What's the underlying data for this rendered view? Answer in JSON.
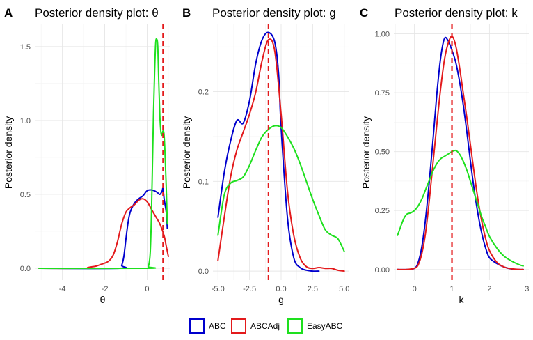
{
  "chart_data": [
    {
      "type": "line",
      "panel": "A",
      "title": "Posterior density plot: θ",
      "xlabel": "θ",
      "ylabel": "Posterior density",
      "xlim": [
        -5.3,
        1.1
      ],
      "ylim": [
        -0.08,
        1.65
      ],
      "xticks": [
        -4,
        -2,
        0
      ],
      "xtick_labels": [
        "-4",
        "-2",
        "0"
      ],
      "yticks": [
        0,
        0.5,
        1,
        1.5
      ],
      "ytick_labels": [
        "0.0",
        "0.5",
        "1.0",
        "1.5"
      ],
      "reference_line": 0.75,
      "grid": true,
      "series": [
        {
          "name": "ABC",
          "x": [
            -5.1,
            -1.3,
            -1.2,
            -1.1,
            -1.0,
            -0.9,
            -0.8,
            -0.6,
            -0.4,
            -0.2,
            0.0,
            0.2,
            0.4,
            0.5,
            0.6,
            0.7,
            0.75,
            0.8,
            0.9,
            0.95
          ],
          "y": [
            0,
            0,
            0.02,
            0.08,
            0.2,
            0.31,
            0.38,
            0.44,
            0.47,
            0.49,
            0.525,
            0.53,
            0.52,
            0.51,
            0.5,
            0.52,
            0.54,
            0.47,
            0.38,
            0.27
          ]
        },
        {
          "name": "ABCAdj",
          "x": [
            -5.1,
            -3.0,
            -2.8,
            -2.6,
            -2.4,
            -2.2,
            -2.0,
            -1.8,
            -1.6,
            -1.4,
            -1.2,
            -1.0,
            -0.8,
            -0.6,
            -0.4,
            -0.2,
            0.0,
            0.2,
            0.4,
            0.6,
            0.8,
            0.9,
            1.0
          ],
          "y": [
            0,
            0,
            0.005,
            0.01,
            0.015,
            0.025,
            0.035,
            0.05,
            0.09,
            0.18,
            0.3,
            0.38,
            0.41,
            0.43,
            0.46,
            0.47,
            0.45,
            0.4,
            0.35,
            0.3,
            0.22,
            0.15,
            0.08
          ]
        },
        {
          "name": "EasyABC",
          "x": [
            -5.1,
            0.0,
            0.05,
            0.1,
            0.15,
            0.2,
            0.25,
            0.3,
            0.35,
            0.4,
            0.45,
            0.5,
            0.55,
            0.6,
            0.65,
            0.7,
            0.75,
            0.8,
            0.85,
            0.9,
            0.95
          ],
          "y": [
            0,
            0,
            0.01,
            0.04,
            0.12,
            0.35,
            0.7,
            1.05,
            1.32,
            1.52,
            1.55,
            1.5,
            1.25,
            1.03,
            0.92,
            0.9,
            0.93,
            0.9,
            0.75,
            0.55,
            0.3
          ]
        }
      ]
    },
    {
      "type": "line",
      "panel": "B",
      "title": "Posterior density plot: g",
      "xlabel": "g",
      "ylabel": "Posterior density",
      "xlim": [
        -5.4,
        5.4
      ],
      "ylim": [
        -0.01,
        0.275
      ],
      "xticks": [
        -5,
        -2.5,
        0,
        2.5,
        5
      ],
      "xtick_labels": [
        "-5.0",
        "-2.5",
        "0.0",
        "2.5",
        "5.0"
      ],
      "yticks": [
        0,
        0.1,
        0.2
      ],
      "ytick_labels": [
        "0.0",
        "0.1",
        "0.2"
      ],
      "reference_line": -1.0,
      "grid": true,
      "series": [
        {
          "name": "ABC",
          "x": [
            -5.0,
            -4.5,
            -4.0,
            -3.5,
            -3.0,
            -2.5,
            -2.0,
            -1.5,
            -1.0,
            -0.5,
            -0.2,
            0.0,
            0.5,
            1.0,
            1.5,
            2.0,
            2.5,
            3.0
          ],
          "y": [
            0.06,
            0.11,
            0.145,
            0.168,
            0.165,
            0.19,
            0.232,
            0.258,
            0.266,
            0.255,
            0.22,
            0.16,
            0.06,
            0.015,
            0.004,
            0.001,
            0,
            0
          ]
        },
        {
          "name": "ABCAdj",
          "x": [
            -5.0,
            -4.5,
            -4.0,
            -3.5,
            -3.0,
            -2.5,
            -2.0,
            -1.5,
            -1.0,
            -0.5,
            0.0,
            0.5,
            1.0,
            1.5,
            2.0,
            2.5,
            3.0,
            3.5,
            4.0,
            4.5,
            5.0
          ],
          "y": [
            0.012,
            0.06,
            0.105,
            0.135,
            0.155,
            0.175,
            0.2,
            0.235,
            0.258,
            0.245,
            0.175,
            0.09,
            0.04,
            0.015,
            0.005,
            0.003,
            0.004,
            0.003,
            0.003,
            0.001,
            0
          ]
        },
        {
          "name": "EasyABC",
          "x": [
            -5.0,
            -4.5,
            -4.0,
            -3.5,
            -3.0,
            -2.5,
            -2.0,
            -1.5,
            -1.0,
            -0.5,
            0.0,
            0.5,
            1.0,
            1.5,
            2.0,
            2.5,
            3.0,
            3.5,
            4.0,
            4.5,
            5.0
          ],
          "y": [
            0.04,
            0.085,
            0.098,
            0.101,
            0.105,
            0.118,
            0.135,
            0.15,
            0.158,
            0.162,
            0.16,
            0.15,
            0.137,
            0.12,
            0.1,
            0.08,
            0.062,
            0.046,
            0.04,
            0.036,
            0.022
          ]
        }
      ]
    },
    {
      "type": "line",
      "panel": "C",
      "title": "Posterior density plot: k",
      "xlabel": "k",
      "ylabel": "Posterior density",
      "xlim": [
        -0.55,
        3.05
      ],
      "ylim": [
        -0.045,
        1.04
      ],
      "xticks": [
        0,
        1,
        2,
        3
      ],
      "xtick_labels": [
        "0",
        "1",
        "2",
        "3"
      ],
      "yticks": [
        0,
        0.25,
        0.5,
        0.75,
        1
      ],
      "ytick_labels": [
        "0.00",
        "0.25",
        "0.50",
        "0.75",
        "1.00"
      ],
      "reference_line": 1.0,
      "grid": true,
      "series": [
        {
          "name": "ABC",
          "x": [
            -0.45,
            -0.2,
            0.0,
            0.1,
            0.2,
            0.3,
            0.4,
            0.5,
            0.6,
            0.7,
            0.8,
            0.9,
            1.0,
            1.1,
            1.2,
            1.3,
            1.4,
            1.5,
            1.6,
            1.7,
            1.8,
            1.9,
            2.0,
            2.2,
            2.4,
            2.6,
            2.8,
            2.9
          ],
          "y": [
            0,
            0,
            0.005,
            0.03,
            0.1,
            0.22,
            0.38,
            0.56,
            0.75,
            0.9,
            0.98,
            0.97,
            0.93,
            0.88,
            0.8,
            0.7,
            0.58,
            0.45,
            0.33,
            0.23,
            0.15,
            0.09,
            0.05,
            0.025,
            0.01,
            0.002,
            0,
            0
          ]
        },
        {
          "name": "ABCAdj",
          "x": [
            -0.45,
            -0.2,
            0.0,
            0.1,
            0.2,
            0.3,
            0.4,
            0.5,
            0.6,
            0.7,
            0.8,
            0.9,
            1.0,
            1.1,
            1.2,
            1.3,
            1.4,
            1.5,
            1.6,
            1.7,
            1.8,
            1.9,
            2.0,
            2.2,
            2.4,
            2.6,
            2.8,
            2.9
          ],
          "y": [
            0,
            0,
            0.005,
            0.02,
            0.07,
            0.16,
            0.3,
            0.46,
            0.62,
            0.77,
            0.89,
            0.96,
            0.99,
            0.95,
            0.86,
            0.75,
            0.64,
            0.52,
            0.4,
            0.29,
            0.2,
            0.13,
            0.08,
            0.03,
            0.01,
            0.003,
            0,
            0
          ]
        },
        {
          "name": "EasyABC",
          "x": [
            -0.45,
            -0.3,
            -0.2,
            -0.1,
            0.0,
            0.1,
            0.2,
            0.3,
            0.4,
            0.5,
            0.6,
            0.7,
            0.8,
            0.9,
            1.0,
            1.1,
            1.2,
            1.3,
            1.4,
            1.5,
            1.6,
            1.7,
            1.8,
            1.9,
            2.0,
            2.2,
            2.4,
            2.6,
            2.8,
            2.9
          ],
          "y": [
            0.145,
            0.21,
            0.235,
            0.24,
            0.25,
            0.27,
            0.3,
            0.34,
            0.38,
            0.42,
            0.45,
            0.47,
            0.48,
            0.49,
            0.5,
            0.505,
            0.49,
            0.46,
            0.42,
            0.37,
            0.32,
            0.27,
            0.22,
            0.18,
            0.14,
            0.09,
            0.055,
            0.035,
            0.02,
            0.015
          ]
        }
      ]
    }
  ],
  "legend": {
    "position": "bottom",
    "items": [
      {
        "label": "ABC",
        "color": "#0000cd"
      },
      {
        "label": "ABCAdj",
        "color": "#e31a1c"
      },
      {
        "label": "EasyABC",
        "color": "#1ee01e"
      }
    ]
  },
  "colors": {
    "ABC": "#0000cd",
    "ABCAdj": "#e31a1c",
    "EasyABC": "#1ee01e",
    "reference_line": "#e31a1c",
    "grid": "#e6e6e6"
  }
}
